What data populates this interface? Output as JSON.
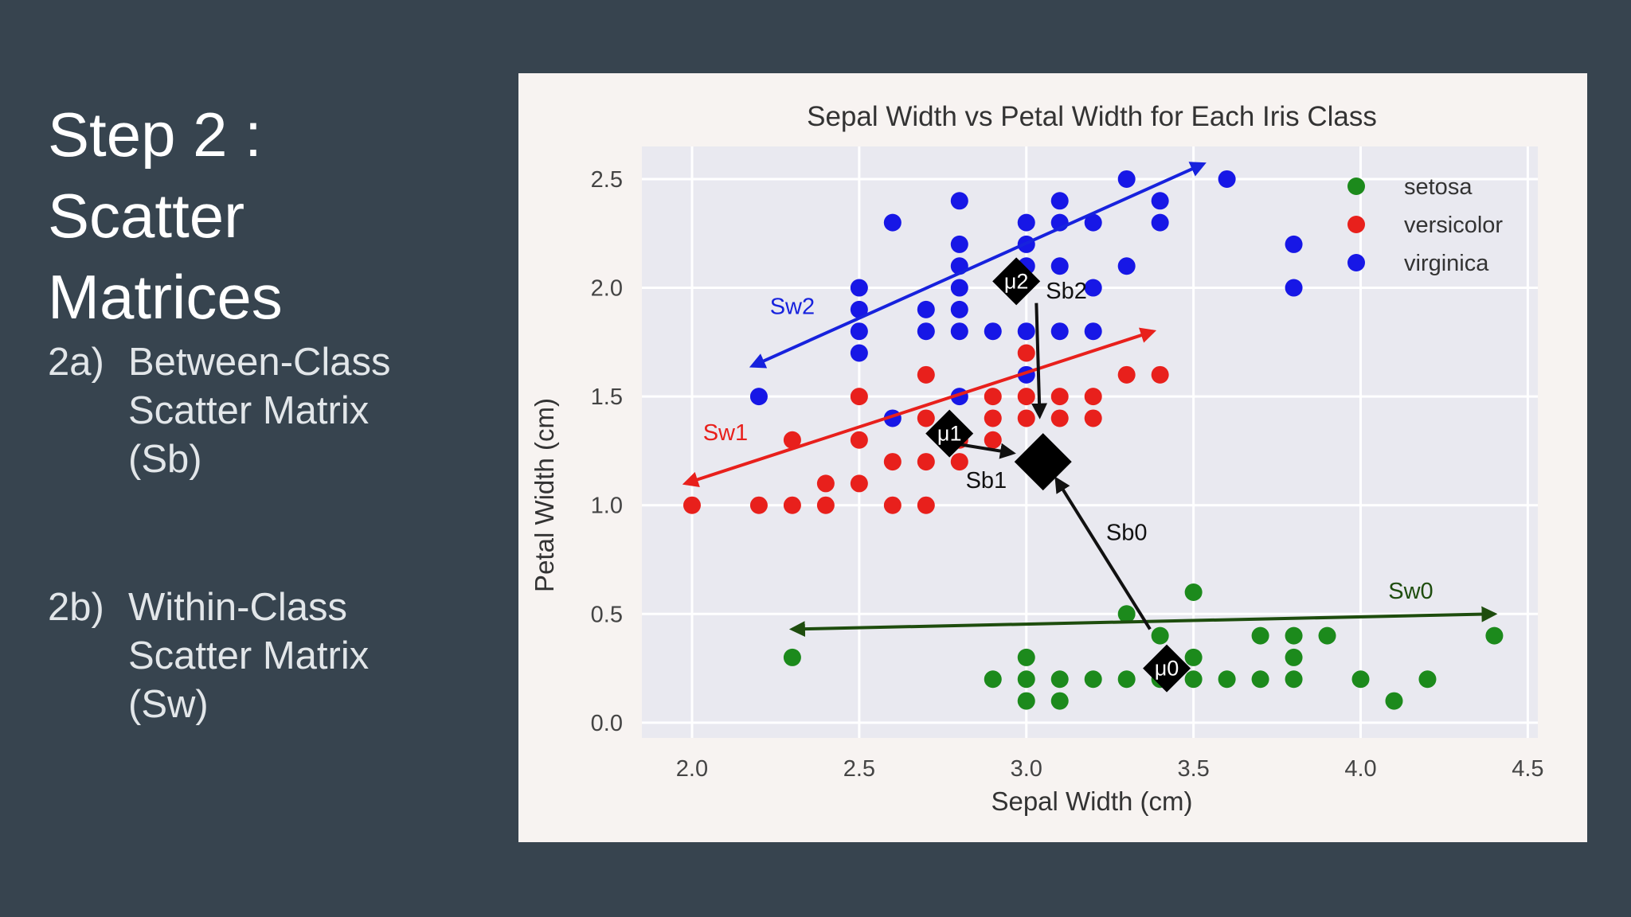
{
  "slide": {
    "title_lines": [
      "Step 2 :",
      "Scatter",
      "Matrices"
    ],
    "items": [
      {
        "num": "2a)",
        "lines": [
          "Between-Class",
          "Scatter Matrix",
          "(Sb)"
        ]
      },
      {
        "num": "2b)",
        "lines": [
          "Within-Class",
          "Scatter Matrix",
          "(Sw)"
        ]
      }
    ]
  },
  "chart_data": {
    "type": "scatter",
    "title": "Sepal Width vs Petal Width for Each Iris Class",
    "xlabel": "Sepal Width (cm)",
    "ylabel": "Petal Width (cm)",
    "xlim": [
      1.85,
      4.53
    ],
    "ylim": [
      -0.07,
      2.65
    ],
    "xticks": [
      "2.0",
      "2.5",
      "3.0",
      "3.5",
      "4.0",
      "4.5"
    ],
    "yticks": [
      "0.0",
      "0.5",
      "1.0",
      "1.5",
      "2.0",
      "2.5"
    ],
    "grid": true,
    "legend_placement": "top-right",
    "series": [
      {
        "name": "setosa",
        "color": "#1c8a1c",
        "points": [
          [
            2.3,
            0.3
          ],
          [
            2.9,
            0.2
          ],
          [
            3.0,
            0.1
          ],
          [
            3.0,
            0.2
          ],
          [
            3.0,
            0.3
          ],
          [
            3.1,
            0.1
          ],
          [
            3.1,
            0.2
          ],
          [
            3.2,
            0.2
          ],
          [
            3.3,
            0.2
          ],
          [
            3.3,
            0.5
          ],
          [
            3.4,
            0.2
          ],
          [
            3.4,
            0.4
          ],
          [
            3.5,
            0.2
          ],
          [
            3.5,
            0.3
          ],
          [
            3.5,
            0.6
          ],
          [
            3.6,
            0.2
          ],
          [
            3.7,
            0.2
          ],
          [
            3.7,
            0.4
          ],
          [
            3.8,
            0.2
          ],
          [
            3.8,
            0.3
          ],
          [
            3.8,
            0.4
          ],
          [
            3.9,
            0.4
          ],
          [
            4.0,
            0.2
          ],
          [
            4.1,
            0.1
          ],
          [
            4.2,
            0.2
          ],
          [
            4.4,
            0.4
          ]
        ]
      },
      {
        "name": "versicolor",
        "color": "#e8201c",
        "points": [
          [
            2.0,
            1.0
          ],
          [
            2.2,
            1.0
          ],
          [
            2.3,
            1.0
          ],
          [
            2.3,
            1.3
          ],
          [
            2.4,
            1.0
          ],
          [
            2.4,
            1.1
          ],
          [
            2.5,
            1.1
          ],
          [
            2.5,
            1.3
          ],
          [
            2.5,
            1.5
          ],
          [
            2.6,
            1.0
          ],
          [
            2.6,
            1.2
          ],
          [
            2.7,
            1.0
          ],
          [
            2.7,
            1.2
          ],
          [
            2.7,
            1.4
          ],
          [
            2.7,
            1.6
          ],
          [
            2.8,
            1.2
          ],
          [
            2.8,
            1.3
          ],
          [
            2.9,
            1.3
          ],
          [
            2.9,
            1.4
          ],
          [
            2.9,
            1.5
          ],
          [
            3.0,
            1.4
          ],
          [
            3.0,
            1.5
          ],
          [
            3.0,
            1.7
          ],
          [
            3.1,
            1.4
          ],
          [
            3.1,
            1.5
          ],
          [
            3.2,
            1.4
          ],
          [
            3.2,
            1.5
          ],
          [
            3.3,
            1.6
          ],
          [
            3.4,
            1.6
          ]
        ]
      },
      {
        "name": "virginica",
        "color": "#1717e6",
        "points": [
          [
            2.2,
            1.5
          ],
          [
            2.5,
            1.7
          ],
          [
            2.5,
            1.8
          ],
          [
            2.5,
            1.9
          ],
          [
            2.5,
            2.0
          ],
          [
            2.6,
            1.4
          ],
          [
            2.6,
            2.3
          ],
          [
            2.7,
            1.8
          ],
          [
            2.7,
            1.9
          ],
          [
            2.8,
            1.5
          ],
          [
            2.8,
            1.8
          ],
          [
            2.8,
            1.9
          ],
          [
            2.8,
            2.0
          ],
          [
            2.8,
            2.1
          ],
          [
            2.8,
            2.2
          ],
          [
            2.8,
            2.4
          ],
          [
            2.9,
            1.8
          ],
          [
            3.0,
            1.6
          ],
          [
            3.0,
            1.8
          ],
          [
            3.0,
            2.1
          ],
          [
            3.0,
            2.2
          ],
          [
            3.0,
            2.3
          ],
          [
            3.1,
            1.8
          ],
          [
            3.1,
            2.1
          ],
          [
            3.1,
            2.3
          ],
          [
            3.1,
            2.4
          ],
          [
            3.2,
            1.8
          ],
          [
            3.2,
            2.0
          ],
          [
            3.2,
            2.3
          ],
          [
            3.3,
            2.1
          ],
          [
            3.3,
            2.5
          ],
          [
            3.4,
            2.3
          ],
          [
            3.4,
            2.4
          ],
          [
            3.6,
            2.5
          ],
          [
            3.8,
            2.0
          ],
          [
            3.8,
            2.2
          ]
        ]
      }
    ],
    "means": [
      {
        "label": "μ0",
        "x": 3.42,
        "y": 0.25
      },
      {
        "label": "μ1",
        "x": 2.77,
        "y": 1.33
      },
      {
        "label": "μ2",
        "x": 2.97,
        "y": 2.03
      },
      {
        "label": "",
        "x": 3.05,
        "y": 1.2,
        "overall": true
      }
    ],
    "annotations": [
      {
        "label": "Sw0",
        "color": "#1e4d0e",
        "from": [
          4.4,
          0.5
        ],
        "to": [
          2.3,
          0.43
        ],
        "double": true,
        "label_at": [
          4.15,
          0.57
        ]
      },
      {
        "label": "Sw1",
        "color": "#e8201c",
        "from": [
          3.38,
          1.8
        ],
        "to": [
          1.98,
          1.1
        ],
        "double": true,
        "label_at": [
          2.1,
          1.3
        ]
      },
      {
        "label": "Sw2",
        "color": "#1722dd",
        "from": [
          3.53,
          2.57
        ],
        "to": [
          2.18,
          1.64
        ],
        "double": true,
        "label_at": [
          2.3,
          1.88
        ]
      },
      {
        "label": "Sb0",
        "color": "#111111",
        "from": [
          3.37,
          0.43
        ],
        "to": [
          3.09,
          1.12
        ],
        "double": false,
        "label_at": [
          3.3,
          0.84
        ]
      },
      {
        "label": "Sb1",
        "color": "#111111",
        "from": [
          2.8,
          1.28
        ],
        "to": [
          2.96,
          1.24
        ],
        "double": false,
        "label_at": [
          2.88,
          1.08
        ]
      },
      {
        "label": "Sb2",
        "color": "#111111",
        "from": [
          3.03,
          1.93
        ],
        "to": [
          3.04,
          1.41
        ],
        "double": false,
        "label_at": [
          3.12,
          1.95
        ]
      }
    ]
  }
}
